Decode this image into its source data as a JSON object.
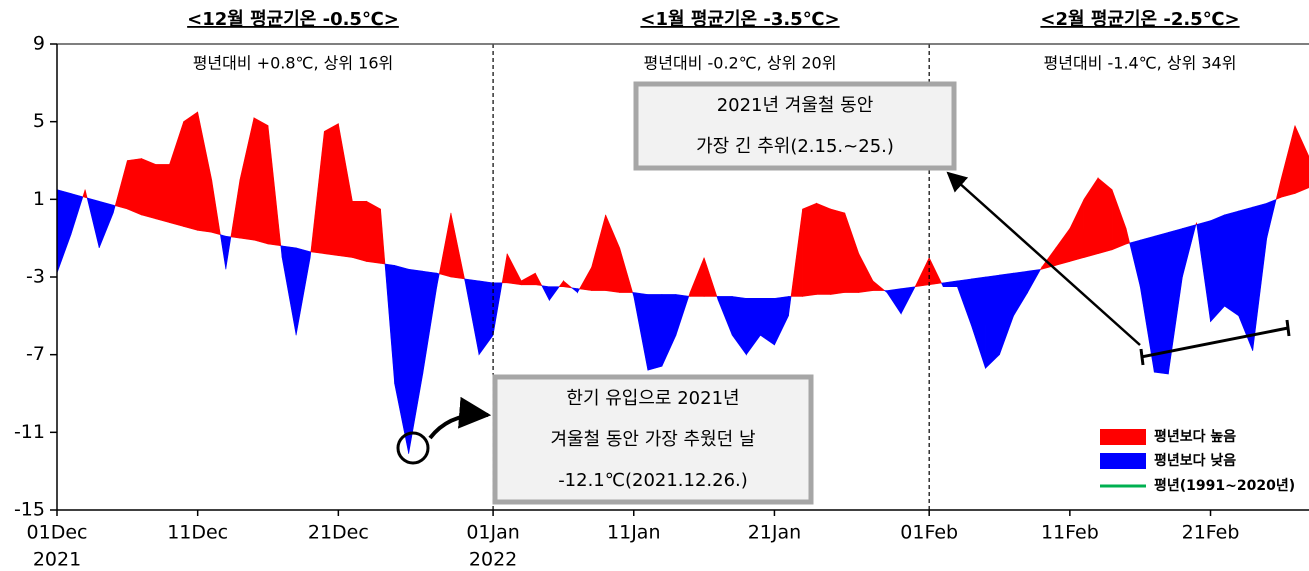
{
  "chart_data": {
    "type": "anomaly-area",
    "headers": [
      {
        "title": "<12월 평균기온 -0.5℃>",
        "subtitle": "평년대비 +0.8℃, 상위 16위"
      },
      {
        "title": "<1월 평균기온 -3.5℃>",
        "subtitle": "평년대비 -0.2℃, 상위 20위"
      },
      {
        "title": "<2월 평균기온 -2.5℃>",
        "subtitle": "평년대비 -1.4℃, 상위 34위"
      }
    ],
    "annotations": {
      "longest_cold": [
        "2021년 겨울철 동안",
        "가장 긴 추위(2.15.~25.)"
      ],
      "coldest_day": [
        "한기 유입으로 2021년",
        "겨울철 동안 가장 추웠던 날",
        "-12.1℃(2021.12.26.)"
      ]
    },
    "legend": [
      {
        "label": "평년보다 높음",
        "color": "#ff0000"
      },
      {
        "label": "평년보다 낮음",
        "color": "#0000ff"
      },
      {
        "label": "평년(1991~2020년)",
        "color": "#00b050"
      }
    ],
    "xlim": [
      "2021-12-01",
      "2022-02-28"
    ],
    "xticks": [
      {
        "value": "2021-12-01",
        "label": "01Dec"
      },
      {
        "value": "2021-12-11",
        "label": "11Dec"
      },
      {
        "value": "2021-12-21",
        "label": "21Dec"
      },
      {
        "value": "2022-01-01",
        "label": "01Jan"
      },
      {
        "value": "2022-01-11",
        "label": "11Jan"
      },
      {
        "value": "2022-01-21",
        "label": "21Jan"
      },
      {
        "value": "2022-02-01",
        "label": "01Feb"
      },
      {
        "value": "2022-02-11",
        "label": "11Feb"
      },
      {
        "value": "2022-02-21",
        "label": "21Feb"
      }
    ],
    "x_year_labels": [
      {
        "value": "2021-12-01",
        "label": "2021"
      },
      {
        "value": "2022-01-01",
        "label": "2022"
      }
    ],
    "dividers": [
      "2022-01-01",
      "2022-02-01"
    ],
    "ylim": [
      -15,
      9
    ],
    "yticks": [
      9,
      5,
      1,
      -3,
      -7,
      -11,
      -15
    ],
    "x": [
      "2021-12-01",
      "2021-12-02",
      "2021-12-03",
      "2021-12-04",
      "2021-12-05",
      "2021-12-06",
      "2021-12-07",
      "2021-12-08",
      "2021-12-09",
      "2021-12-10",
      "2021-12-11",
      "2021-12-12",
      "2021-12-13",
      "2021-12-14",
      "2021-12-15",
      "2021-12-16",
      "2021-12-17",
      "2021-12-18",
      "2021-12-19",
      "2021-12-20",
      "2021-12-21",
      "2021-12-22",
      "2021-12-23",
      "2021-12-24",
      "2021-12-25",
      "2021-12-26",
      "2021-12-27",
      "2021-12-28",
      "2021-12-29",
      "2021-12-30",
      "2021-12-31",
      "2022-01-01",
      "2022-01-02",
      "2022-01-03",
      "2022-01-04",
      "2022-01-05",
      "2022-01-06",
      "2022-01-07",
      "2022-01-08",
      "2022-01-09",
      "2022-01-10",
      "2022-01-11",
      "2022-01-12",
      "2022-01-13",
      "2022-01-14",
      "2022-01-15",
      "2022-01-16",
      "2022-01-17",
      "2022-01-18",
      "2022-01-19",
      "2022-01-20",
      "2022-01-21",
      "2022-01-22",
      "2022-01-23",
      "2022-01-24",
      "2022-01-25",
      "2022-01-26",
      "2022-01-27",
      "2022-01-28",
      "2022-01-29",
      "2022-01-30",
      "2022-01-31",
      "2022-02-01",
      "2022-02-02",
      "2022-02-03",
      "2022-02-04",
      "2022-02-05",
      "2022-02-06",
      "2022-02-07",
      "2022-02-08",
      "2022-02-09",
      "2022-02-10",
      "2022-02-11",
      "2022-02-12",
      "2022-02-13",
      "2022-02-14",
      "2022-02-15",
      "2022-02-16",
      "2022-02-17",
      "2022-02-18",
      "2022-02-19",
      "2022-02-20",
      "2022-02-21",
      "2022-02-22",
      "2022-02-23",
      "2022-02-24",
      "2022-02-25",
      "2022-02-26",
      "2022-02-27",
      "2022-02-28"
    ],
    "values": [
      -2.8,
      -0.8,
      1.5,
      -1.5,
      0.3,
      3.0,
      3.1,
      2.8,
      2.8,
      5.0,
      5.5,
      2.0,
      -2.6,
      2.0,
      5.2,
      4.8,
      -2.0,
      -6.0,
      -2.0,
      4.5,
      4.9,
      0.9,
      0.9,
      0.5,
      -8.5,
      -12.1,
      -8.0,
      -3.5,
      0.3,
      -3.2,
      -7.0,
      -6.0,
      -1.8,
      -3.2,
      -2.8,
      -4.2,
      -3.2,
      -3.8,
      -2.5,
      0.2,
      -1.5,
      -4.0,
      -7.8,
      -7.6,
      -6.0,
      -3.8,
      -2.0,
      -4.2,
      -6.0,
      -7.0,
      -6.0,
      -6.5,
      -5.0,
      0.5,
      0.8,
      0.5,
      0.3,
      -1.8,
      -3.2,
      -3.8,
      -4.9,
      -3.5,
      -2.0,
      -3.5,
      -3.5,
      -5.5,
      -7.7,
      -7.0,
      -5.0,
      -3.8,
      -2.5,
      -1.5,
      -0.5,
      1.0,
      2.1,
      1.5,
      -0.5,
      -3.5,
      -7.9,
      -8.0,
      -3.0,
      -0.2,
      -5.3,
      -4.5,
      -5.0,
      -6.8,
      -1.0,
      2.0,
      4.8,
      3.2
    ],
    "normal": [
      1.5,
      1.3,
      1.1,
      0.9,
      0.7,
      0.5,
      0.2,
      0,
      -0.2,
      -0.4,
      -0.6,
      -0.7,
      -0.9,
      -1.0,
      -1.1,
      -1.3,
      -1.4,
      -1.5,
      -1.7,
      -1.8,
      -1.9,
      -2.0,
      -2.2,
      -2.3,
      -2.4,
      -2.6,
      -2.7,
      -2.8,
      -3.0,
      -3.1,
      -3.2,
      -3.3,
      -3.3,
      -3.4,
      -3.4,
      -3.5,
      -3.5,
      -3.6,
      -3.7,
      -3.7,
      -3.8,
      -3.8,
      -3.9,
      -3.9,
      -3.9,
      -4.0,
      -4.0,
      -4.0,
      -4.0,
      -4.1,
      -4.1,
      -4.1,
      -4.0,
      -4.0,
      -3.9,
      -3.9,
      -3.8,
      -3.8,
      -3.7,
      -3.7,
      -3.6,
      -3.5,
      -3.4,
      -3.3,
      -3.2,
      -3.1,
      -3.0,
      -2.9,
      -2.8,
      -2.7,
      -2.6,
      -2.4,
      -2.2,
      -2.0,
      -1.8,
      -1.6,
      -1.3,
      -1.1,
      -0.9,
      -0.7,
      -0.5,
      -0.3,
      -0.1,
      0.2,
      0.4,
      0.6,
      0.8,
      1.1,
      1.3,
      1.6
    ]
  }
}
